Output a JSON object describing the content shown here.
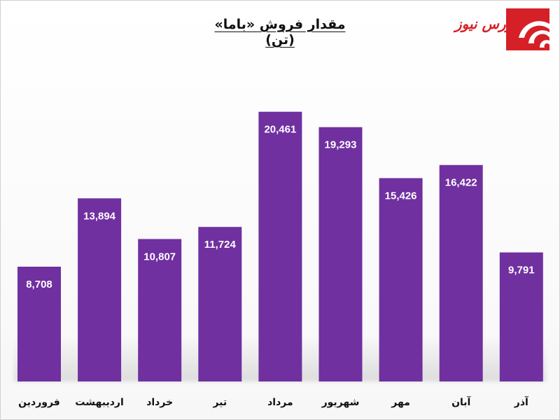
{
  "chart_data": {
    "type": "bar",
    "title": "مقدار فروش «باما» (تن)",
    "categories": [
      "فروردین",
      "اردیبهشت",
      "خرداد",
      "تیر",
      "مرداد",
      "شهریور",
      "مهر",
      "آبان",
      "آذر"
    ],
    "values": [
      8708,
      13894,
      10807,
      11724,
      20461,
      19293,
      15426,
      16422,
      9791
    ],
    "data_labels": [
      "8,708",
      "13,894",
      "10,807",
      "11,724",
      "20,461",
      "19,293",
      "15,426",
      "16,422",
      "9,791"
    ],
    "xlabel": "",
    "ylabel": "",
    "ylim": [
      0,
      24000
    ],
    "grid": false,
    "legend": "none",
    "bar_color": "#7030a0"
  },
  "logo": {
    "text": "بورس نیوز",
    "color": "#d62027"
  }
}
